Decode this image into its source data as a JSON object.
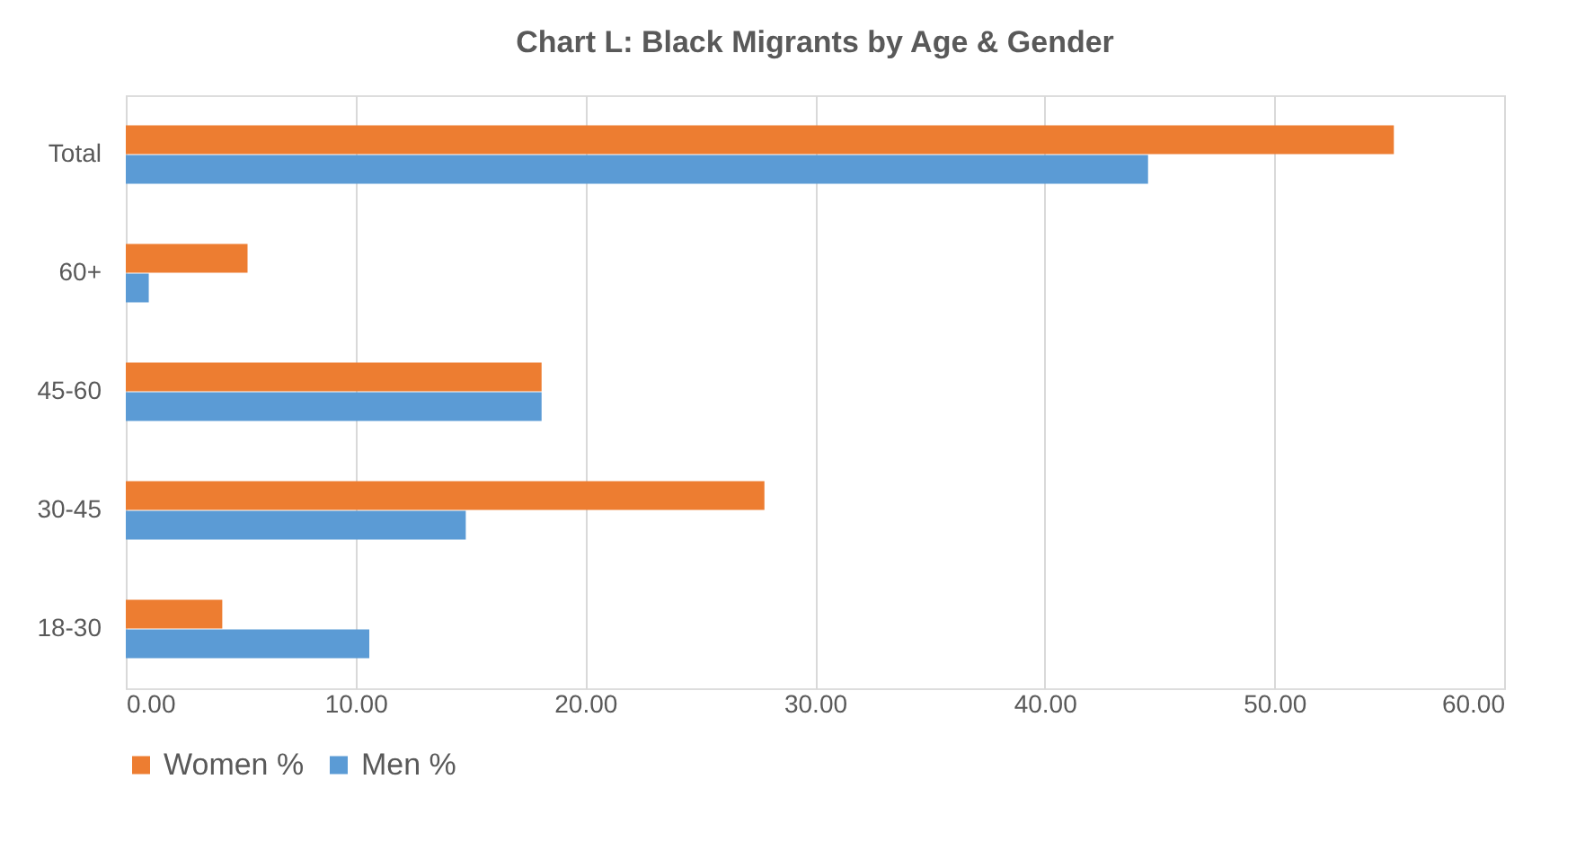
{
  "chart_data": {
    "type": "bar",
    "orientation": "horizontal",
    "title": "Chart L: Black Migrants by Age & Gender",
    "categories": [
      "Total",
      "60+",
      "45-60",
      "30-45",
      "18-30"
    ],
    "series": [
      {
        "name": "Women %",
        "color": "#ed7d31",
        "values": [
          55.2,
          5.3,
          18.1,
          27.8,
          4.2
        ]
      },
      {
        "name": "Men %",
        "color": "#5b9bd5",
        "values": [
          44.5,
          1.0,
          18.1,
          14.8,
          10.6
        ]
      }
    ],
    "xlim": [
      0,
      60
    ],
    "xticks": [
      {
        "value": 0,
        "label": "0.00"
      },
      {
        "value": 10,
        "label": "10.00"
      },
      {
        "value": 20,
        "label": "20.00"
      },
      {
        "value": 30,
        "label": "30.00"
      },
      {
        "value": 40,
        "label": "40.00"
      },
      {
        "value": 50,
        "label": "50.00"
      },
      {
        "value": 60,
        "label": "60.00"
      }
    ],
    "grid": "x",
    "legend": "bottom"
  }
}
